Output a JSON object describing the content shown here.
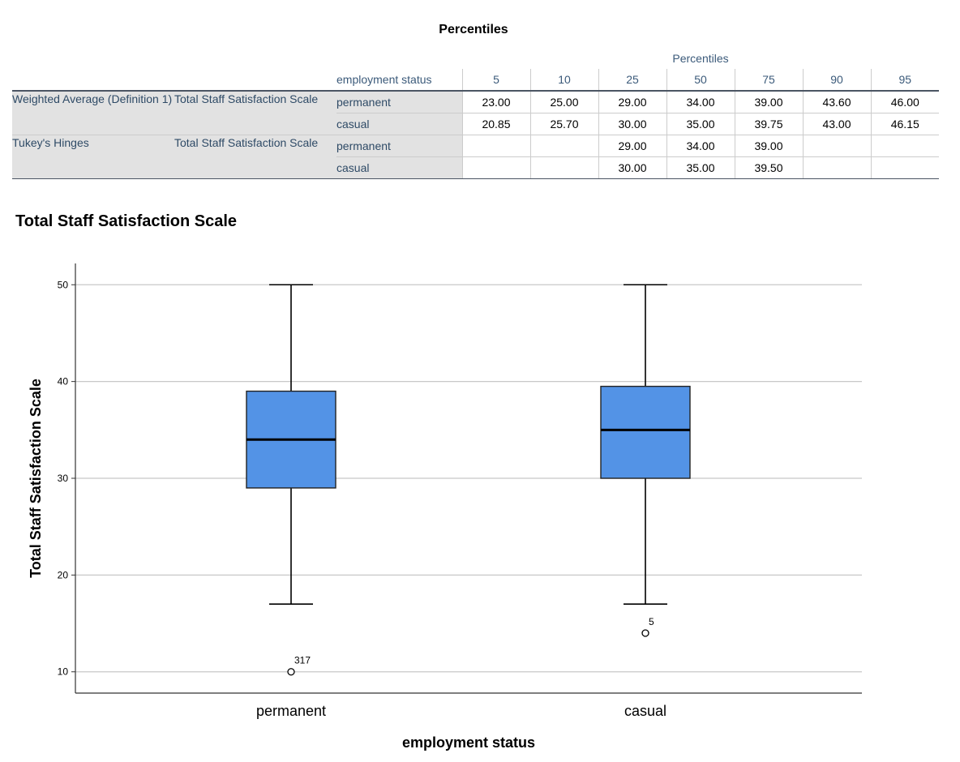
{
  "table": {
    "title": "Percentiles",
    "group_header": "Percentiles",
    "factor_header": "employment status",
    "columns": [
      "5",
      "10",
      "25",
      "50",
      "75",
      "90",
      "95"
    ],
    "sections": [
      {
        "method": "Weighted Average (Definition 1)",
        "variable": "Total Staff Satisfaction Scale",
        "rows": [
          {
            "group": "permanent",
            "values": [
              "23.00",
              "25.00",
              "29.00",
              "34.00",
              "39.00",
              "43.60",
              "46.00"
            ]
          },
          {
            "group": "casual",
            "values": [
              "20.85",
              "25.70",
              "30.00",
              "35.00",
              "39.75",
              "43.00",
              "46.15"
            ]
          }
        ]
      },
      {
        "method": "Tukey's Hinges",
        "variable": "Total Staff Satisfaction Scale",
        "rows": [
          {
            "group": "permanent",
            "values": [
              "",
              "",
              "29.00",
              "34.00",
              "39.00",
              "",
              ""
            ]
          },
          {
            "group": "casual",
            "values": [
              "",
              "",
              "30.00",
              "35.00",
              "39.50",
              "",
              ""
            ]
          }
        ]
      }
    ]
  },
  "chart_data": {
    "type": "boxplot",
    "title": "Total Staff Satisfaction Scale",
    "xlabel": "employment status",
    "ylabel": "Total Staff Satisfaction Scale",
    "ylim": [
      7.8,
      52.2
    ],
    "yticks": [
      10,
      20,
      30,
      40,
      50
    ],
    "grid": true,
    "box_color": "#5393e6",
    "categories": [
      "permanent",
      "casual"
    ],
    "boxes": [
      {
        "category": "permanent",
        "whisker_low": 17,
        "q1": 29,
        "median": 34,
        "q3": 39,
        "whisker_high": 50,
        "outliers": [
          {
            "value": 10,
            "label": "317"
          }
        ]
      },
      {
        "category": "casual",
        "whisker_low": 17,
        "q1": 30,
        "median": 35,
        "q3": 39.5,
        "whisker_high": 50,
        "outliers": [
          {
            "value": 14,
            "label": "5"
          }
        ]
      }
    ]
  }
}
